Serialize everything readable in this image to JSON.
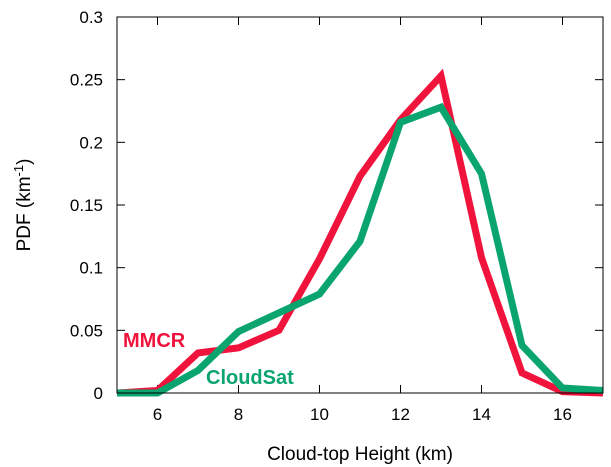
{
  "chart_data": {
    "type": "line",
    "title": "",
    "xlabel": "Cloud-top Height (km)",
    "ylabel_main": "PDF (km",
    "ylabel_sup": "-1",
    "ylabel_close": ")",
    "xlim": [
      5,
      17
    ],
    "ylim": [
      0,
      0.3
    ],
    "x_ticks": [
      6,
      8,
      10,
      12,
      14,
      16
    ],
    "x_tick_labels": [
      "6",
      "8",
      "10",
      "12",
      "14",
      "16"
    ],
    "y_ticks": [
      0,
      0.05,
      0.1,
      0.15,
      0.2,
      0.25,
      0.3
    ],
    "y_tick_labels": [
      "0",
      "0.05",
      "0.1",
      "0.15",
      "0.2",
      "0.25",
      "0.3"
    ],
    "grid": false,
    "legend": "inline labels near lower-left",
    "series": [
      {
        "name": "MMCR",
        "color": "#f0143c",
        "x": [
          5,
          6,
          7,
          8,
          9,
          10,
          11,
          12,
          13,
          14,
          15,
          16,
          17
        ],
        "y": [
          0,
          0.002,
          0.032,
          0.036,
          0.05,
          0.107,
          0.173,
          0.218,
          0.253,
          0.108,
          0.016,
          0.001,
          0
        ]
      },
      {
        "name": "CloudSat",
        "color": "#0aa56e",
        "x": [
          5,
          6,
          7,
          8,
          9,
          10,
          11,
          12,
          13,
          14,
          15,
          16,
          17
        ],
        "y": [
          0,
          0,
          0.018,
          0.049,
          0.064,
          0.079,
          0.121,
          0.216,
          0.228,
          0.175,
          0.038,
          0.004,
          0.002
        ]
      }
    ]
  }
}
